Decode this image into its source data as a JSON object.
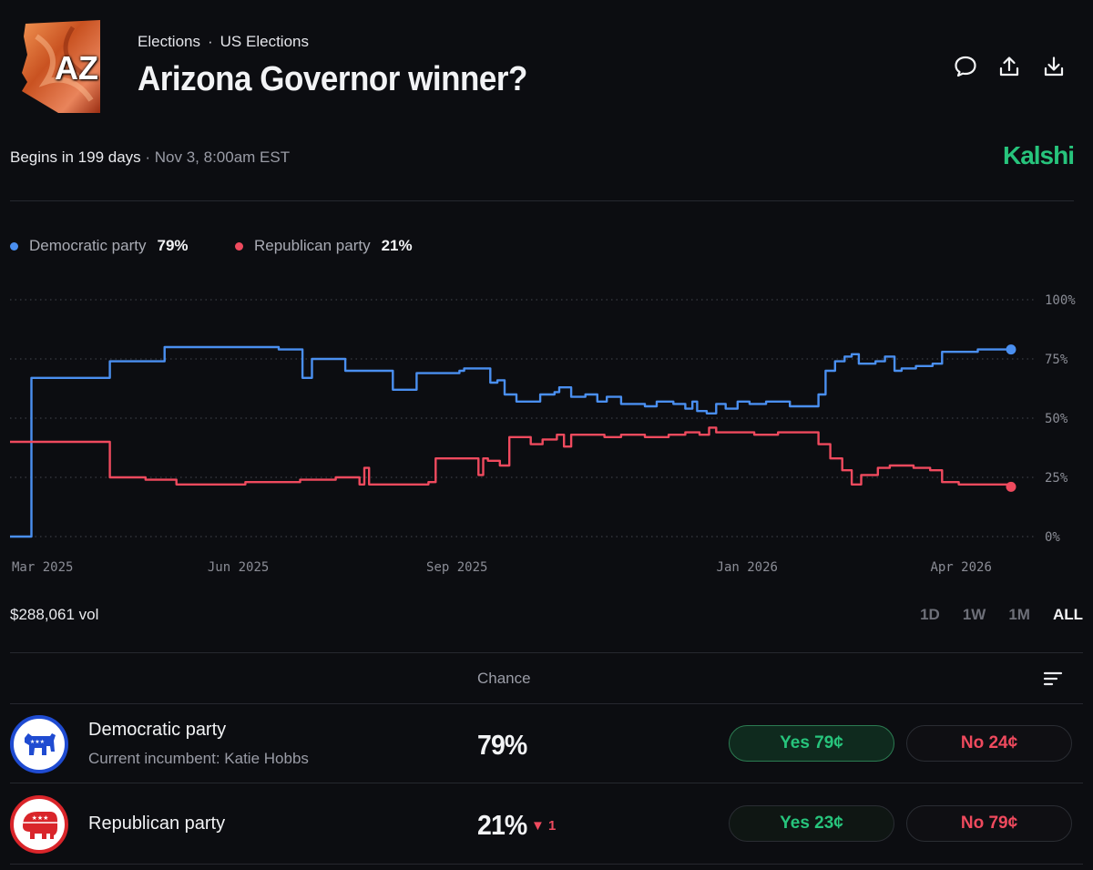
{
  "header": {
    "breadcrumb": [
      "Elections",
      "US Elections"
    ],
    "breadcrumb_sep": "·",
    "title": "Arizona Governor winner?",
    "thumbnail_label": "AZ",
    "icons": [
      "comment-icon",
      "share-icon",
      "download-icon"
    ]
  },
  "market": {
    "begins": "Begins in 199 days",
    "date": " · Nov 3, 8:00am EST",
    "brand": "Kalshi"
  },
  "legend": [
    {
      "name": "Democratic party",
      "value": "79%",
      "color": "#4a8ff0"
    },
    {
      "name": "Republican party",
      "value": "21%",
      "color": "#ef4a5e"
    }
  ],
  "chart_data": {
    "type": "line",
    "x_tick_labels": [
      "Mar 2025",
      "Jun 2025",
      "Sep 2025",
      "Jan 2026",
      "Apr 2026"
    ],
    "y_tick_labels": [
      "100%",
      "75%",
      "50%",
      "25%",
      "0%"
    ],
    "ylim": [
      0,
      100
    ],
    "grid": true,
    "x_domain": [
      "2025-02-25",
      "2026-04-22"
    ],
    "series": [
      {
        "name": "Democratic party",
        "color": "#4a8ff0",
        "points": [
          [
            "2025-02-25",
            0
          ],
          [
            "2025-03-05",
            0
          ],
          [
            "2025-03-06",
            67
          ],
          [
            "2025-04-05",
            67
          ],
          [
            "2025-04-08",
            74
          ],
          [
            "2025-04-29",
            74
          ],
          [
            "2025-05-01",
            80
          ],
          [
            "2025-06-17",
            80
          ],
          [
            "2025-06-18",
            79
          ],
          [
            "2025-06-25",
            79
          ],
          [
            "2025-06-28",
            67
          ],
          [
            "2025-06-30",
            67
          ],
          [
            "2025-07-02",
            75
          ],
          [
            "2025-07-14",
            75
          ],
          [
            "2025-07-16",
            70
          ],
          [
            "2025-08-03",
            70
          ],
          [
            "2025-08-05",
            62
          ],
          [
            "2025-08-13",
            62
          ],
          [
            "2025-08-15",
            69
          ],
          [
            "2025-09-02",
            70
          ],
          [
            "2025-09-04",
            71
          ],
          [
            "2025-09-13",
            71
          ],
          [
            "2025-09-15",
            65
          ],
          [
            "2025-09-18",
            66
          ],
          [
            "2025-09-21",
            60
          ],
          [
            "2025-09-26",
            57
          ],
          [
            "2025-10-04",
            57
          ],
          [
            "2025-10-06",
            60
          ],
          [
            "2025-10-12",
            61
          ],
          [
            "2025-10-14",
            63
          ],
          [
            "2025-10-19",
            59
          ],
          [
            "2025-10-25",
            60
          ],
          [
            "2025-10-30",
            57
          ],
          [
            "2025-11-03",
            59
          ],
          [
            "2025-11-09",
            56
          ],
          [
            "2025-11-19",
            55
          ],
          [
            "2025-11-24",
            57
          ],
          [
            "2025-12-01",
            56
          ],
          [
            "2025-12-06",
            54
          ],
          [
            "2025-12-09",
            57
          ],
          [
            "2025-12-11",
            53
          ],
          [
            "2025-12-15",
            52
          ],
          [
            "2025-12-19",
            56
          ],
          [
            "2025-12-23",
            54
          ],
          [
            "2025-12-28",
            57
          ],
          [
            "2026-01-02",
            56
          ],
          [
            "2026-01-09",
            57
          ],
          [
            "2026-01-14",
            57
          ],
          [
            "2026-01-19",
            55
          ],
          [
            "2026-01-26",
            55
          ],
          [
            "2026-01-31",
            60
          ],
          [
            "2026-02-03",
            70
          ],
          [
            "2026-02-07",
            74
          ],
          [
            "2026-02-11",
            76
          ],
          [
            "2026-02-14",
            77
          ],
          [
            "2026-02-17",
            73
          ],
          [
            "2026-02-24",
            74
          ],
          [
            "2026-02-28",
            76
          ],
          [
            "2026-03-04",
            70
          ],
          [
            "2026-03-07",
            71
          ],
          [
            "2026-03-13",
            72
          ],
          [
            "2026-03-20",
            73
          ],
          [
            "2026-03-24",
            78
          ],
          [
            "2026-03-31",
            78
          ],
          [
            "2026-04-08",
            79
          ],
          [
            "2026-04-15",
            79
          ],
          [
            "2026-04-22",
            79
          ]
        ]
      },
      {
        "name": "Republican party",
        "color": "#ef4a5e",
        "points": [
          [
            "2025-02-25",
            40
          ],
          [
            "2025-04-05",
            40
          ],
          [
            "2025-04-08",
            25
          ],
          [
            "2025-04-21",
            25
          ],
          [
            "2025-04-23",
            24
          ],
          [
            "2025-05-04",
            24
          ],
          [
            "2025-05-06",
            22
          ],
          [
            "2025-05-31",
            22
          ],
          [
            "2025-06-04",
            23
          ],
          [
            "2025-06-27",
            24
          ],
          [
            "2025-07-08",
            24
          ],
          [
            "2025-07-12",
            25
          ],
          [
            "2025-07-20",
            25
          ],
          [
            "2025-07-22",
            22
          ],
          [
            "2025-07-24",
            29
          ],
          [
            "2025-07-26",
            22
          ],
          [
            "2025-08-20",
            23
          ],
          [
            "2025-08-23",
            33
          ],
          [
            "2025-09-08",
            33
          ],
          [
            "2025-09-10",
            26
          ],
          [
            "2025-09-12",
            33
          ],
          [
            "2025-09-14",
            32
          ],
          [
            "2025-09-19",
            30
          ],
          [
            "2025-09-23",
            42
          ],
          [
            "2025-10-02",
            39
          ],
          [
            "2025-10-07",
            41
          ],
          [
            "2025-10-13",
            43
          ],
          [
            "2025-10-16",
            38
          ],
          [
            "2025-10-19",
            43
          ],
          [
            "2025-10-26",
            43
          ],
          [
            "2025-11-02",
            42
          ],
          [
            "2025-11-09",
            43
          ],
          [
            "2025-11-19",
            42
          ],
          [
            "2025-11-29",
            43
          ],
          [
            "2025-12-06",
            44
          ],
          [
            "2025-12-12",
            43
          ],
          [
            "2025-12-16",
            46
          ],
          [
            "2025-12-19",
            44
          ],
          [
            "2025-12-27",
            44
          ],
          [
            "2026-01-04",
            43
          ],
          [
            "2026-01-14",
            44
          ],
          [
            "2026-01-26",
            44
          ],
          [
            "2026-01-31",
            39
          ],
          [
            "2026-02-05",
            33
          ],
          [
            "2026-02-10",
            28
          ],
          [
            "2026-02-14",
            22
          ],
          [
            "2026-02-18",
            26
          ],
          [
            "2026-02-25",
            29
          ],
          [
            "2026-03-02",
            30
          ],
          [
            "2026-03-12",
            29
          ],
          [
            "2026-03-19",
            28
          ],
          [
            "2026-03-24",
            23
          ],
          [
            "2026-03-31",
            22
          ],
          [
            "2026-04-08",
            22
          ],
          [
            "2026-04-15",
            22
          ],
          [
            "2026-04-22",
            21
          ]
        ]
      }
    ]
  },
  "volume": "$288,061 vol",
  "ranges": [
    "1D",
    "1W",
    "1M",
    "ALL"
  ],
  "active_range": "ALL",
  "table": {
    "header": "Chance",
    "rows": [
      {
        "name": "Democratic party",
        "sub": "Current incumbent: Katie Hobbs",
        "chance": "79%",
        "change": "",
        "yes": "Yes 79¢",
        "no": "No 24¢",
        "logo": "donkey-logo-icon"
      },
      {
        "name": "Republican party",
        "sub": "",
        "chance": "21%",
        "change": "▼ 1",
        "yes": "Yes 23¢",
        "no": "No 79¢",
        "logo": "elephant-logo-icon"
      }
    ]
  }
}
